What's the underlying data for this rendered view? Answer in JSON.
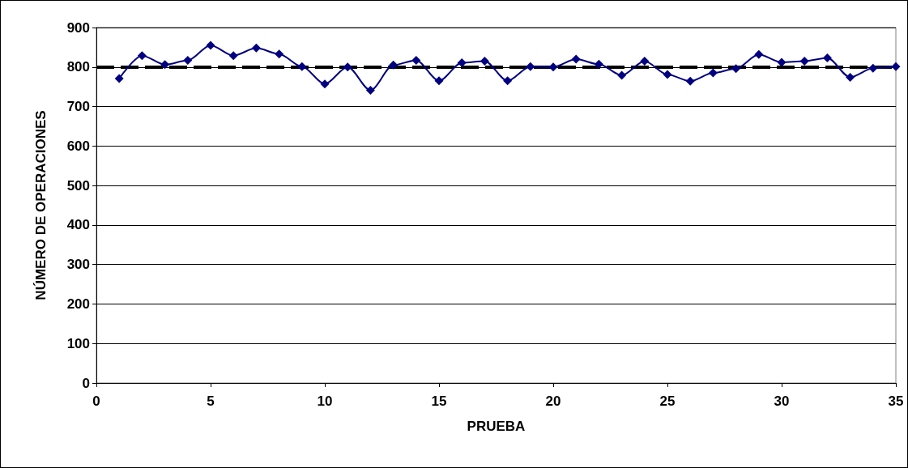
{
  "chart_data": {
    "type": "line",
    "xlabel": "PRUEBA",
    "ylabel": "NÚMERO DE OPERACIONES",
    "x": [
      1,
      2,
      3,
      4,
      5,
      6,
      7,
      8,
      9,
      10,
      11,
      12,
      13,
      14,
      15,
      16,
      17,
      18,
      19,
      20,
      21,
      22,
      23,
      24,
      25,
      26,
      27,
      28,
      29,
      30,
      31,
      32,
      33,
      34,
      35
    ],
    "series": [
      {
        "color": "#000080",
        "values": [
          771,
          829,
          806,
          817,
          855,
          829,
          848,
          833,
          801,
          757,
          800,
          741,
          805,
          817,
          765,
          811,
          815,
          765,
          801,
          800,
          820,
          807,
          779,
          815,
          781,
          764,
          785,
          796,
          832,
          812,
          815,
          823,
          774,
          797,
          801
        ]
      }
    ],
    "xlim": [
      0,
      35
    ],
    "xticks": [
      0,
      5,
      10,
      15,
      20,
      25,
      30,
      35
    ],
    "ylim": [
      0,
      900
    ],
    "yticks": [
      0,
      100,
      200,
      300,
      400,
      500,
      600,
      700,
      800,
      900
    ],
    "grid": "y",
    "marker": "diamond",
    "line_style": "solid",
    "ref_lines": [
      {
        "axis": "y",
        "value": 800,
        "color": "#000000",
        "line_style": "dashed"
      }
    ]
  }
}
